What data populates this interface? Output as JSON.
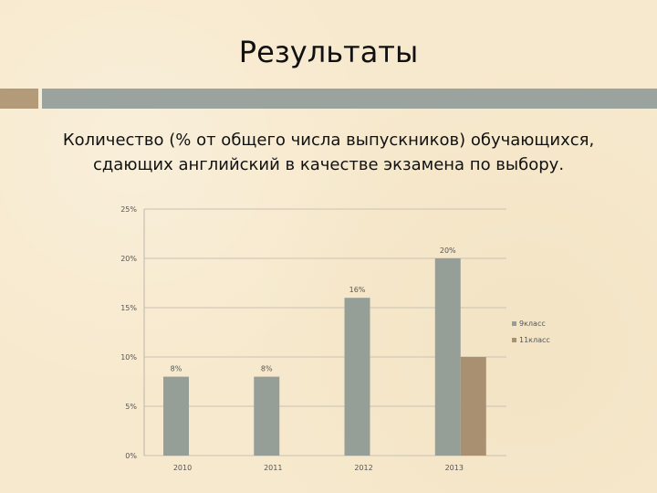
{
  "slide": {
    "title": "Результаты",
    "subtitle_line1": "Количество (% от общего числа выпускников) обучающихся,",
    "subtitle_line2": "сдающих английский в качестве экзамена по выбору."
  },
  "colors": {
    "background": "#f7e9cd",
    "accent_left": "#b39a78",
    "accent_right": "#9aa39e"
  },
  "chart_data": {
    "type": "bar",
    "categories": [
      "2010",
      "2011",
      "2012",
      "2013"
    ],
    "series": [
      {
        "name": "9класс",
        "color": "#969f97",
        "values": [
          8,
          8,
          16,
          20
        ],
        "labels": [
          "8%",
          "8%",
          "16%",
          "20%"
        ]
      },
      {
        "name": "11класс",
        "color": "#a89070",
        "values": [
          null,
          null,
          null,
          10
        ],
        "labels": [
          null,
          null,
          null,
          null
        ]
      }
    ],
    "ylim": [
      0,
      25
    ],
    "yticks": [
      0,
      5,
      10,
      15,
      20,
      25
    ],
    "ytick_labels": [
      "0%",
      "5%",
      "10%",
      "15%",
      "20%",
      "25%"
    ],
    "grid": true,
    "legend_position": "right"
  }
}
